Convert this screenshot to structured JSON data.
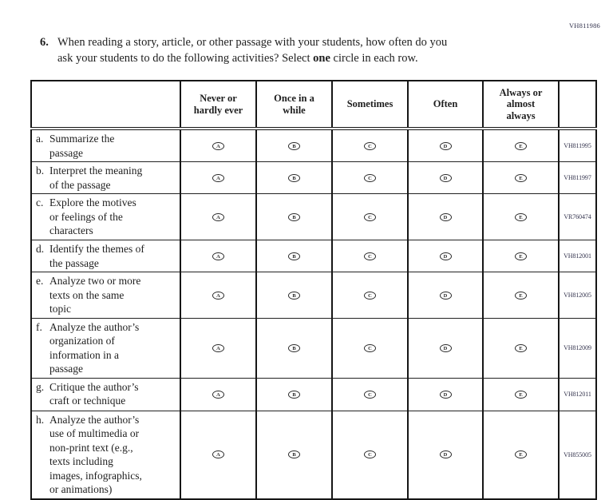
{
  "page": {
    "top_right_code": "VH811986",
    "colors": {
      "body_text": "#1e1e1e",
      "border": "#161616",
      "item_code_text": "#33334d",
      "background": "#ffffff"
    }
  },
  "question": {
    "number": "6.",
    "text_before_bold": "When reading a story, article, or other passage with your students, how often do you\nask your students to do the following activities? Select ",
    "bold_word": "one",
    "text_after_bold": " circle in each row."
  },
  "table": {
    "headers": [
      "Never or\nhardly ever",
      "Once in a\nwhile",
      "Sometimes",
      "Often",
      "Always or\nalmost\nalways"
    ],
    "option_letters": [
      "A",
      "B",
      "C",
      "D",
      "E"
    ],
    "rows": [
      {
        "letter": "a.",
        "label": "Summarize the\npassage",
        "code": "VH811995"
      },
      {
        "letter": "b.",
        "label": "Interpret the meaning\nof the passage",
        "code": "VH811997"
      },
      {
        "letter": "c.",
        "label": "Explore the motives\nor feelings of the\ncharacters",
        "code": "VR760474"
      },
      {
        "letter": "d.",
        "label": "Identify the themes of\nthe passage",
        "code": "VH812001"
      },
      {
        "letter": "e.",
        "label": "Analyze two or more\ntexts on the same\ntopic",
        "code": "VH812005"
      },
      {
        "letter": "f.",
        "label": "Analyze the author’s\norganization of\ninformation in a\npassage",
        "code": "VH812009"
      },
      {
        "letter": "g.",
        "label": "Critique the author’s\ncraft or technique",
        "code": "VH812011"
      },
      {
        "letter": "h.",
        "label": "Analyze the author’s\nuse of multimedia or\nnon-print text (e.g.,\ntexts including\nimages, infographics,\nor animations)",
        "code": "VH855005"
      }
    ]
  }
}
